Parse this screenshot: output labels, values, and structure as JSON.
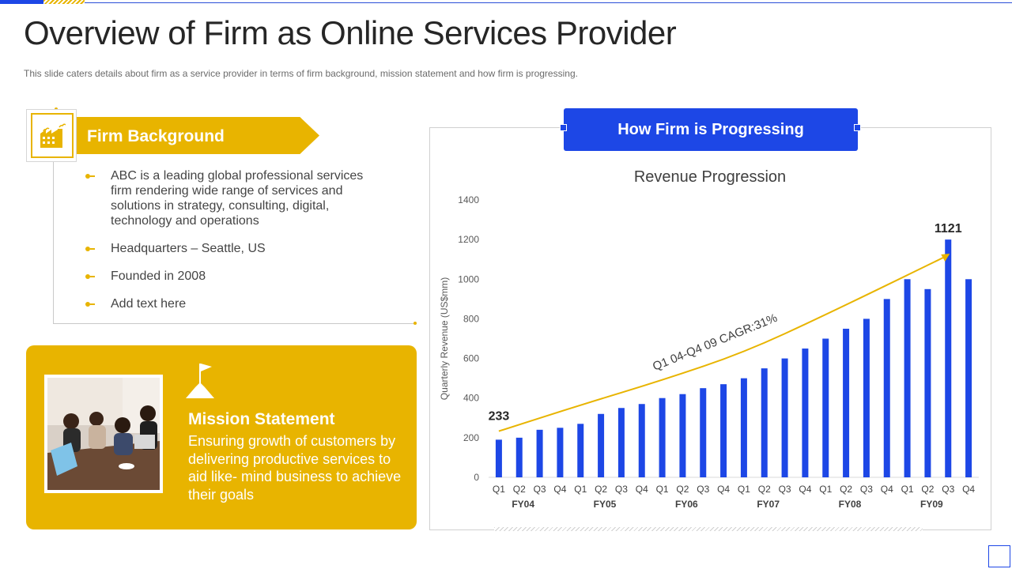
{
  "slide": {
    "title": "Overview of Firm as Online Services Provider",
    "subtitle": "This slide caters details about firm as a service provider in terms of firm background, mission statement and how firm is progressing."
  },
  "firm_background": {
    "heading": "Firm Background",
    "icon": "factory-icon",
    "items": [
      "ABC is a leading global professional services firm rendering wide range of services and solutions in strategy, consulting, digital, technology and operations",
      "Headquarters – Seattle, US",
      "Founded in 2008",
      "Add text here"
    ]
  },
  "mission": {
    "heading": "Mission Statement",
    "text": "Ensuring growth of customers by delivering productive services to aid like- mind business to achieve their goals",
    "icon": "flag-on-hill-icon",
    "photo": "team-meeting-photo"
  },
  "progress": {
    "banner": "How Firm is Progressing"
  },
  "colors": {
    "accent_yellow": "#e8b400",
    "accent_blue": "#1d47e6",
    "bar_blue": "#1d47e6",
    "trend_line": "#e8b400"
  },
  "chart_data": {
    "type": "bar",
    "title": "Revenue Progression",
    "ylabel": "Quarterly Revenue  (US$mm)",
    "xlabel": "",
    "ylim": [
      0,
      1400
    ],
    "yticks": [
      0,
      200,
      400,
      600,
      800,
      1000,
      1200,
      1400
    ],
    "categories": [
      "Q1",
      "Q2",
      "Q3",
      "Q4",
      "Q1",
      "Q2",
      "Q3",
      "Q4",
      "Q1",
      "Q2",
      "Q3",
      "Q4",
      "Q1",
      "Q2",
      "Q3",
      "Q4",
      "Q1",
      "Q2",
      "Q3",
      "Q4",
      "Q1",
      "Q2",
      "Q3",
      "Q4"
    ],
    "groups": [
      {
        "label": "FY04",
        "start": 0,
        "end": 3
      },
      {
        "label": "FY05",
        "start": 4,
        "end": 7
      },
      {
        "label": "FY06",
        "start": 8,
        "end": 11
      },
      {
        "label": "FY07",
        "start": 12,
        "end": 15
      },
      {
        "label": "FY08",
        "start": 16,
        "end": 19
      },
      {
        "label": "FY09",
        "start": 20,
        "end": 23
      }
    ],
    "values": [
      190,
      200,
      240,
      250,
      270,
      320,
      350,
      370,
      400,
      420,
      450,
      470,
      500,
      550,
      600,
      650,
      700,
      750,
      800,
      900,
      1000,
      950,
      1200,
      1000
    ],
    "data_labels": [
      {
        "index": 0,
        "text": "233"
      },
      {
        "index": 22,
        "text": "1121"
      }
    ],
    "trend": {
      "label": "Q1 04-Q4 09 CAGR:31%",
      "points": [
        [
          0,
          233
        ],
        [
          4,
          365
        ],
        [
          8,
          490
        ],
        [
          12,
          630
        ],
        [
          16,
          820
        ],
        [
          22,
          1121
        ]
      ]
    },
    "grid": false,
    "legend": "none"
  }
}
